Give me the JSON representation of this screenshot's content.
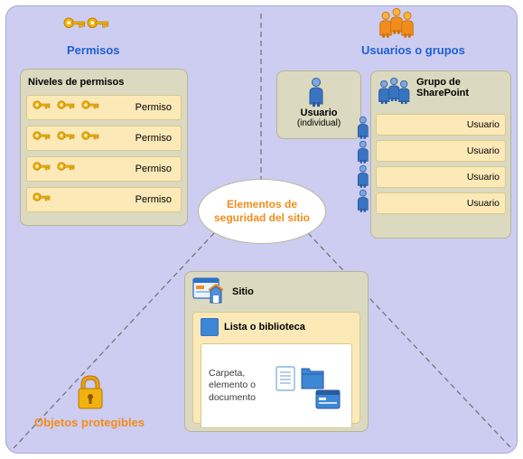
{
  "layout": {
    "canvas_bg": "#cdcdf2",
    "canvas_border": "#a6a6da"
  },
  "colors": {
    "title_blue": "#1f5fd0",
    "orange": "#f28c1c",
    "orange_light": "#ffb23a",
    "key_gold": "#f1b20f",
    "key_highlight": "#fff2b8",
    "panel_bg": "#dbdac0",
    "panel_border": "#b7b495",
    "row_bg": "#fbe9b8",
    "row_border": "#d9c88e",
    "user_blue": "#3874c0",
    "user_blue_light": "#7ea8e0",
    "folder_blue": "#3e86d6",
    "doc_blue": "#8bb4e4",
    "white": "#ffffff",
    "text_dark": "#3a3a3a",
    "lock_body": "#e8a21a",
    "dash": "#6e6e6e",
    "site_win_border": "#2f6fc8",
    "site_win_fill": "#eaf2fc"
  },
  "titles": {
    "permisos": "Permisos",
    "usuarios": "Usuarios o grupos",
    "objetos": "Objetos protegibles"
  },
  "center": {
    "line1": "Elementos de",
    "line2": "seguridad del sitio"
  },
  "permissions_panel": {
    "header": "Niveles de permisos",
    "rows": [
      {
        "keys": 3,
        "label": "Permiso"
      },
      {
        "keys": 3,
        "label": "Permiso"
      },
      {
        "keys": 2,
        "label": "Permiso"
      },
      {
        "keys": 1,
        "label": "Permiso"
      }
    ]
  },
  "user_panel": {
    "label_line1": "Usuario",
    "label_line2": "(individual)"
  },
  "group_panel": {
    "label_line1": "Grupo de",
    "label_line2": "SharePoint",
    "rows": [
      {
        "label": "Usuario"
      },
      {
        "label": "Usuario"
      },
      {
        "label": "Usuario"
      },
      {
        "label": "Usuario"
      }
    ]
  },
  "objects_panel": {
    "site_label": "Sitio",
    "list_label": "Lista o biblioteca",
    "doc_text": "Carpeta, elemento o documento"
  }
}
